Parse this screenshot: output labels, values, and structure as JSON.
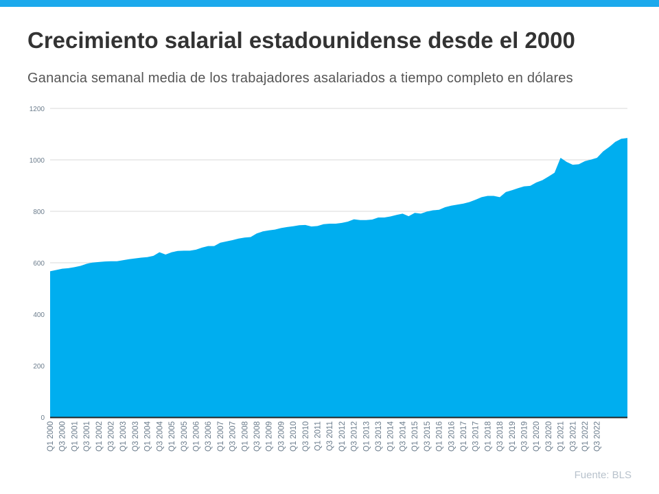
{
  "header": {
    "title": "Crecimiento salarial estadounidense desde el 2000",
    "subtitle": "Ganancia semanal media de los trabajadores asalariados a tiempo completo en dólares"
  },
  "footer": {
    "source": "Fuente:  BLS"
  },
  "colors": {
    "accent_bar": "#1BA9EC",
    "area": "#00AEEF",
    "grid": "#d9d9d9",
    "axis": "#222222",
    "tick_label": "#6b7c8c"
  },
  "chart_data": {
    "type": "area",
    "title": "",
    "xlabel": "",
    "ylabel": "",
    "ylim": [
      0,
      1200
    ],
    "yticks": [
      0,
      200,
      400,
      600,
      800,
      1000,
      1200
    ],
    "grid": true,
    "legend": "none",
    "x_tick_labels": [
      "Q1 2000",
      "Q3 2000",
      "Q1 2001",
      "Q3 2001",
      "Q1 2002",
      "Q3 2002",
      "Q1 2003",
      "Q3 2003",
      "Q1 2004",
      "Q3 2004",
      "Q1 2005",
      "Q3 2005",
      "Q1 2006",
      "Q3 2006",
      "Q1 2007",
      "Q3 2007",
      "Q1 2008",
      "Q3 2008",
      "Q1 2009",
      "Q3 2009",
      "Q1 2010",
      "Q3 2010",
      "Q1 2011",
      "Q3 2011",
      "Q1 2012",
      "Q3 2012",
      "Q1 2013",
      "Q3 2013",
      "Q1 2014",
      "Q3 2014",
      "Q1 2015",
      "Q3 2015",
      "Q1 2016",
      "Q3 2016",
      "Q1 2017",
      "Q3 2017",
      "Q1 2018",
      "Q3 2018",
      "Q1 2019",
      "Q3 2019",
      "Q1 2020",
      "Q3 2020",
      "Q1 2021",
      "Q3 2021",
      "Q1 2022",
      "Q3 2022"
    ],
    "values": [
      567,
      572,
      577,
      579,
      583,
      588,
      596,
      601,
      603,
      605,
      606,
      606,
      610,
      614,
      617,
      620,
      622,
      627,
      641,
      632,
      641,
      646,
      647,
      647,
      651,
      659,
      665,
      665,
      678,
      683,
      688,
      694,
      698,
      700,
      714,
      722,
      726,
      729,
      735,
      739,
      742,
      746,
      747,
      741,
      743,
      750,
      752,
      752,
      755,
      760,
      769,
      766,
      766,
      768,
      776,
      776,
      780,
      786,
      791,
      781,
      794,
      791,
      799,
      804,
      806,
      816,
      822,
      826,
      830,
      836,
      845,
      855,
      860,
      860,
      855,
      875,
      882,
      890,
      897,
      899,
      912,
      921,
      935,
      950,
      1008,
      992,
      981,
      983,
      995,
      1001,
      1008,
      1033,
      1050,
      1070,
      1082,
      1085
    ]
  }
}
